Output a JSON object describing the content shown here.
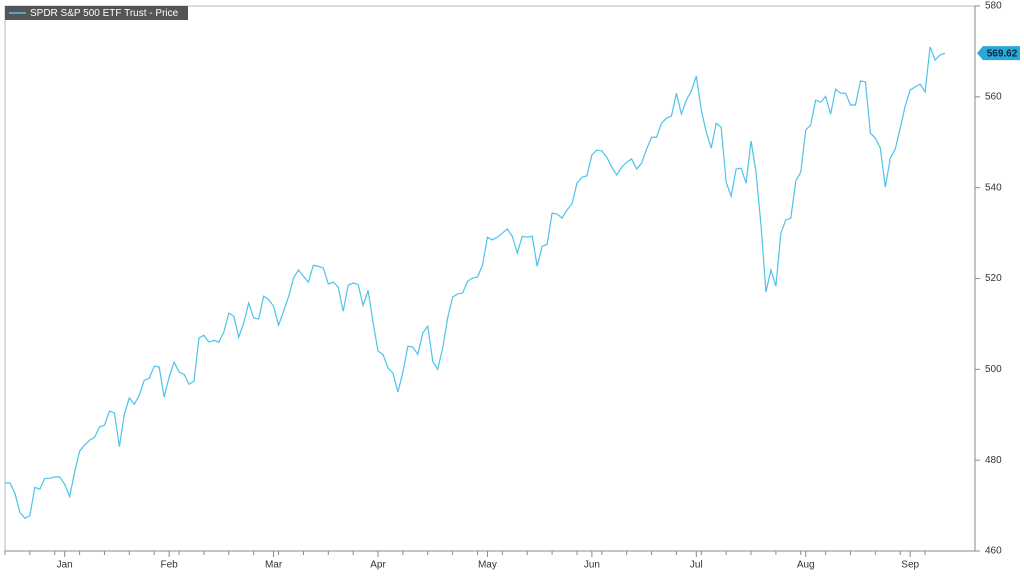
{
  "chart_data": {
    "type": "line",
    "categories": [
      null,
      null,
      null,
      null,
      null,
      null,
      null,
      null,
      null,
      null,
      null,
      null,
      "Jan",
      null,
      null,
      null,
      null,
      null,
      null,
      null,
      null,
      null,
      null,
      null,
      null,
      null,
      null,
      null,
      null,
      null,
      null,
      null,
      null,
      "Feb",
      null,
      null,
      null,
      null,
      null,
      null,
      null,
      null,
      null,
      null,
      null,
      null,
      null,
      null,
      null,
      null,
      null,
      null,
      null,
      null,
      "Mar",
      null,
      null,
      null,
      null,
      null,
      null,
      null,
      null,
      null,
      null,
      null,
      null,
      null,
      null,
      null,
      null,
      null,
      null,
      null,
      null,
      "Apr",
      null,
      null,
      null,
      null,
      null,
      null,
      null,
      null,
      null,
      null,
      null,
      null,
      null,
      null,
      null,
      null,
      null,
      null,
      null,
      null,
      null,
      "May",
      null,
      null,
      null,
      null,
      null,
      null,
      null,
      null,
      null,
      null,
      null,
      null,
      null,
      null,
      null,
      null,
      null,
      null,
      null,
      null,
      "Jun",
      null,
      null,
      null,
      null,
      null,
      null,
      null,
      null,
      null,
      null,
      null,
      null,
      null,
      null,
      null,
      null,
      null,
      null,
      null,
      null,
      "Jul",
      null,
      null,
      null,
      null,
      null,
      null,
      null,
      null,
      null,
      null,
      null,
      null,
      null,
      null,
      null,
      null,
      null,
      null,
      null,
      null,
      null,
      "Aug",
      null,
      null,
      null,
      null,
      null,
      null,
      null,
      null,
      null,
      null,
      null,
      null,
      null,
      null,
      null,
      null,
      null,
      null,
      null,
      null,
      "Sep",
      null,
      null,
      null,
      null,
      null,
      null,
      null
    ],
    "series": [
      {
        "name": "SPDR S&P 500 ETF Trust - Price",
        "color": "#4cc3e8",
        "values": [
          475.0,
          475.0,
          472.7,
          468.5,
          467.2,
          467.8,
          474.0,
          473.6,
          476.0,
          476.0,
          476.3,
          476.3,
          474.7,
          472.0,
          477.4,
          482.0,
          483.3,
          484.4,
          485.0,
          487.3,
          487.7,
          490.8,
          490.4,
          483.0,
          490.1,
          493.7,
          492.3,
          494.3,
          497.6,
          498.0,
          500.7,
          500.5,
          493.9,
          498.3,
          501.6,
          499.4,
          498.9,
          496.7,
          497.4,
          506.9,
          507.5,
          506.0,
          506.4,
          506.0,
          508.2,
          512.4,
          511.7,
          507.1,
          510.2,
          514.6,
          511.3,
          511.1,
          516.1,
          515.4,
          513.9,
          509.7,
          512.8,
          515.9,
          520.1,
          521.9,
          520.5,
          519.2,
          522.9,
          522.7,
          522.3,
          518.8,
          519.2,
          518.1,
          512.8,
          518.5,
          519.0,
          518.7,
          514.1,
          517.4,
          510.4,
          504.0,
          503.3,
          500.3,
          499.2,
          495.0,
          499.4,
          505.1,
          504.9,
          503.3,
          508.0,
          509.5,
          501.8,
          500.0,
          504.7,
          511.3,
          515.9,
          516.6,
          516.8,
          519.4,
          520.1,
          520.3,
          522.9,
          529.1,
          528.5,
          529.1,
          530.0,
          530.9,
          529.3,
          525.6,
          529.3,
          529.1,
          529.3,
          522.7,
          527.1,
          527.5,
          534.4,
          534.2,
          533.3,
          535.1,
          536.4,
          541.0,
          542.3,
          542.6,
          547.2,
          548.3,
          548.1,
          546.7,
          544.5,
          542.8,
          544.5,
          545.6,
          546.3,
          544.1,
          545.4,
          548.5,
          551.1,
          551.1,
          554.2,
          555.3,
          555.8,
          560.8,
          556.2,
          559.3,
          561.3,
          564.6,
          557.1,
          552.2,
          548.7,
          554.2,
          553.3,
          541.2,
          538.1,
          544.1,
          544.3,
          541.0,
          550.3,
          543.4,
          531.8,
          517.0,
          521.9,
          518.3,
          530.0,
          532.9,
          533.3,
          541.5,
          543.4,
          552.7,
          553.8,
          559.3,
          558.8,
          560.1,
          556.2,
          561.7,
          560.8,
          560.8,
          558.2,
          558.2,
          563.5,
          563.3,
          552.0,
          550.9,
          548.7,
          540.1,
          546.5,
          548.5,
          553.1,
          558.0,
          561.5,
          562.2,
          562.8,
          561.1,
          571.0,
          568.1,
          569.2,
          569.62
        ]
      }
    ],
    "ylim": [
      460,
      580
    ],
    "yticks": [
      460,
      480,
      500,
      520,
      540,
      560,
      580
    ],
    "grid": false
  }
}
